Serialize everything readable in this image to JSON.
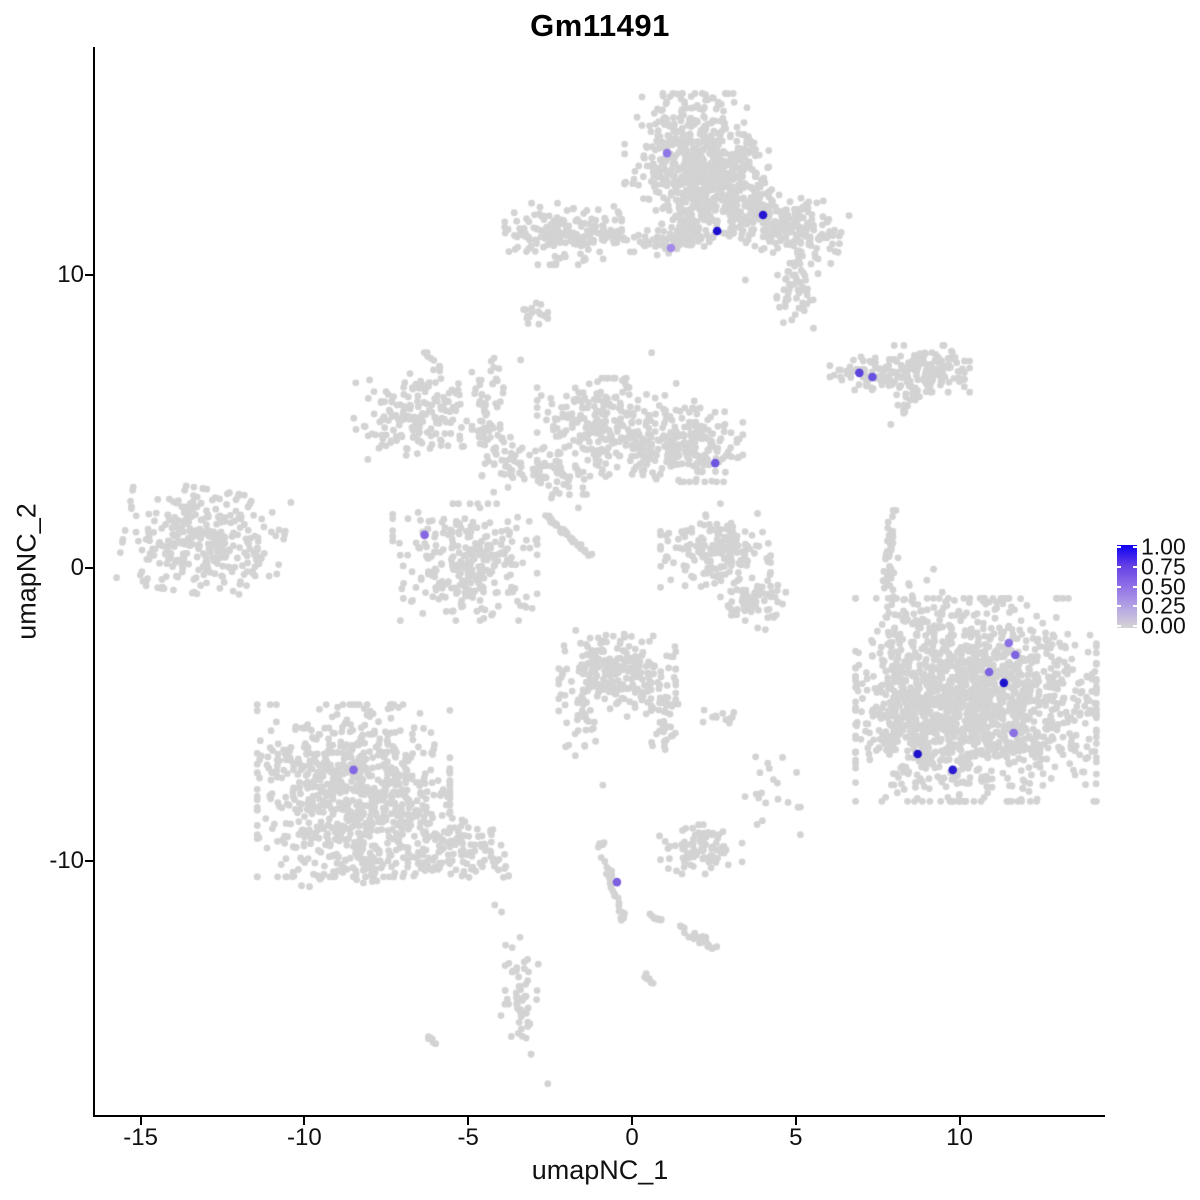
{
  "title": "Gm11491",
  "axes": {
    "x": {
      "label": "umapNC_1",
      "ticks": [
        -15,
        -10,
        -5,
        0,
        5,
        10
      ]
    },
    "y": {
      "label": "umapNC_2",
      "ticks": [
        10,
        0,
        -10
      ]
    }
  },
  "legend": {
    "tick_labels": [
      "1.00",
      "0.75",
      "0.50",
      "0.25",
      "0.00"
    ],
    "tick_values": [
      1.0,
      0.75,
      0.5,
      0.25,
      0.0
    ],
    "gradient_top_to_bottom": [
      "#0d00f5",
      "#6440e5",
      "#9071e6",
      "#b4a4e4",
      "#d6d4d6"
    ]
  },
  "colors": {
    "background_points": "#d3d3d3",
    "axis": "#000000",
    "text": "#111111",
    "max_expression": "#0d00f5"
  },
  "chart_data": {
    "type": "scatter",
    "title": "Gm11491",
    "xlabel": "umapNC_1",
    "ylabel": "umapNC_2",
    "xlim": [
      -16.4,
      14.4
    ],
    "ylim": [
      -18.7,
      17.8
    ],
    "legend_scale": {
      "min": 0.0,
      "max": 1.0,
      "low_color": "#d3d3d3",
      "high_color": "#0d00f5"
    },
    "clusters": [
      {
        "name": "top-main",
        "cx": 1.77,
        "cy": 14.2,
        "sx": 0.95,
        "sy": 0.95,
        "n": 420
      },
      {
        "name": "top-main-lower",
        "cx": 2.6,
        "cy": 13.0,
        "sx": 0.75,
        "sy": 0.75,
        "n": 260
      },
      {
        "name": "top-right-wing",
        "cx": 4.5,
        "cy": 11.8,
        "sx": 0.95,
        "sy": 0.5,
        "n": 240,
        "rot": -15
      },
      {
        "name": "top-wing-tail",
        "cx": 5.05,
        "cy": 9.9,
        "sx": 0.3,
        "sy": 0.85,
        "n": 70
      },
      {
        "name": "top-stem",
        "cx": 1.75,
        "cy": 11.9,
        "sx": 0.4,
        "sy": 0.55,
        "n": 90
      },
      {
        "name": "top-band",
        "cx": 1.1,
        "cy": 11.1,
        "sx": 0.6,
        "sy": 0.2,
        "n": 50
      },
      {
        "name": "topleft-small",
        "cx": -2.1,
        "cy": 11.4,
        "sx": 0.85,
        "sy": 0.5,
        "n": 170
      },
      {
        "name": "topleft-tail",
        "cx": -0.5,
        "cy": 11.3,
        "sx": 0.45,
        "sy": 0.12,
        "n": 25
      },
      {
        "name": "comma-small",
        "cx": -2.9,
        "cy": 8.7,
        "sx": 0.28,
        "sy": 0.18,
        "n": 18
      },
      {
        "name": "right-elong-left",
        "cx": 7.3,
        "cy": 6.6,
        "sx": 0.6,
        "sy": 0.3,
        "n": 90
      },
      {
        "name": "right-elong-right",
        "cx": 9.15,
        "cy": 6.8,
        "sx": 0.55,
        "sy": 0.38,
        "n": 120
      },
      {
        "name": "right-elong-sub",
        "cx": 8.35,
        "cy": 5.7,
        "sx": 0.3,
        "sy": 0.2,
        "n": 16
      },
      {
        "name": "midleft-mini",
        "cx": -6.5,
        "cy": 5.3,
        "sx": 0.95,
        "sy": 0.65,
        "n": 190,
        "rot": 10
      },
      {
        "name": "midleft-chain",
        "cx": -4.3,
        "cy": 5.0,
        "sx": 0.28,
        "sy": 1.15,
        "n": 60
      },
      {
        "name": "mid-blob",
        "cx": -0.9,
        "cy": 4.8,
        "sx": 0.95,
        "sy": 0.8,
        "n": 260
      },
      {
        "name": "mid-connector",
        "cx": -3.0,
        "cy": 3.3,
        "sx": 0.85,
        "sy": 0.4,
        "n": 80,
        "rot": -20
      },
      {
        "name": "center-blob",
        "cx": 1.6,
        "cy": 4.2,
        "sx": 0.85,
        "sy": 0.6,
        "n": 230
      },
      {
        "name": "far-left",
        "cx": -13.1,
        "cy": 0.9,
        "sx": 1.15,
        "sy": 0.85,
        "n": 330,
        "rot": -10
      },
      {
        "name": "left-center",
        "cx": -5.1,
        "cy": 0.2,
        "sx": 1.05,
        "sy": 0.95,
        "n": 280
      },
      {
        "name": "center-low1",
        "cx": 2.55,
        "cy": 0.6,
        "sx": 0.8,
        "sy": 0.6,
        "n": 170
      },
      {
        "name": "center-low2",
        "cx": 3.75,
        "cy": -1.1,
        "sx": 0.5,
        "sy": 0.45,
        "n": 70
      },
      {
        "name": "right-sliver",
        "cx": 7.9,
        "cy": -0.45,
        "sx": 0.14,
        "sy": 1.15,
        "n": 55
      },
      {
        "name": "right-big",
        "cx": 10.5,
        "cy": -4.5,
        "sx": 1.75,
        "sy": 1.65,
        "n": 1500
      },
      {
        "name": "right-big-arm",
        "cx": 8.4,
        "cy": -5.2,
        "sx": 0.65,
        "sy": 1.05,
        "n": 130
      },
      {
        "name": "right-big-top-sparse",
        "cx": 8.8,
        "cy": -1.3,
        "sx": 0.5,
        "sy": 0.6,
        "n": 30
      },
      {
        "name": "bottom-center",
        "cx": -0.45,
        "cy": -3.6,
        "sx": 0.85,
        "sy": 0.7,
        "n": 260
      },
      {
        "name": "bottom-center-tail",
        "cx": 0.95,
        "cy": -5.4,
        "sx": 0.22,
        "sy": 0.55,
        "n": 35
      },
      {
        "name": "bottom-center-left",
        "cx": -1.5,
        "cy": -5.6,
        "sx": 0.25,
        "sy": 0.6,
        "n": 25
      },
      {
        "name": "small-dash-pair",
        "cx": 2.7,
        "cy": -5.1,
        "sx": 0.3,
        "sy": 0.12,
        "n": 12
      },
      {
        "name": "bottom-left-big",
        "cx": -8.5,
        "cy": -7.6,
        "sx": 1.4,
        "sy": 1.4,
        "n": 800
      },
      {
        "name": "bottom-left-tail",
        "cx": -5.5,
        "cy": -9.5,
        "sx": 0.95,
        "sy": 0.5,
        "n": 130,
        "rot": -25
      },
      {
        "name": "bottom-left-under",
        "cx": -8.6,
        "cy": -10.1,
        "sx": 1.2,
        "sy": 0.4,
        "n": 70
      },
      {
        "name": "bottom-small-blob",
        "cx": 2.1,
        "cy": -9.6,
        "sx": 0.6,
        "sy": 0.4,
        "n": 80
      },
      {
        "name": "bottom-vert",
        "cx": -3.45,
        "cy": -14.6,
        "sx": 0.28,
        "sy": 0.95,
        "n": 55
      },
      {
        "name": "bottom-right-sparse",
        "cx": 4.3,
        "cy": -7.6,
        "sx": 0.45,
        "sy": 0.55,
        "n": 18
      }
    ],
    "segments": [
      {
        "name": "mini-dash",
        "x1": -6.4,
        "y1": 7.4,
        "x2": -5.9,
        "y2": 6.85,
        "n": 8,
        "jitter": 0.08
      },
      {
        "name": "diag-streak",
        "x1": -2.6,
        "y1": 1.75,
        "x2": -1.2,
        "y2": 0.35,
        "n": 45,
        "jitter": 0.06
      },
      {
        "name": "bottom-chain",
        "x1": -0.95,
        "y1": -9.45,
        "x2": -0.2,
        "y2": -12.2,
        "n": 30,
        "jitter": 0.1
      },
      {
        "name": "bottom-diag",
        "x1": 1.55,
        "y1": -12.3,
        "x2": 2.6,
        "y2": -13.0,
        "n": 25,
        "jitter": 0.12
      },
      {
        "name": "chain-dots",
        "x1": 0.45,
        "y1": -11.8,
        "x2": 0.95,
        "y2": -12.05,
        "n": 8,
        "jitter": 0.05
      },
      {
        "name": "small-dash",
        "x1": 0.35,
        "y1": -13.8,
        "x2": 0.65,
        "y2": -14.25,
        "n": 7,
        "jitter": 0.05
      },
      {
        "name": "small-dash-2",
        "x1": -6.2,
        "y1": -16.0,
        "x2": -5.9,
        "y2": -16.35,
        "n": 6,
        "jitter": 0.05
      }
    ],
    "outliers": [
      [
        7.9,
        4.9
      ],
      [
        4.07,
        -2.1
      ],
      [
        2.17,
        -5.26
      ],
      [
        -0.89,
        -7.41
      ],
      [
        -2.57,
        -17.6
      ],
      [
        -4.19,
        -11.5
      ],
      [
        -3.98,
        -11.74
      ],
      [
        5.14,
        -9.1
      ],
      [
        3.45,
        -7.8
      ],
      [
        3.46,
        9.83
      ],
      [
        0.6,
        7.35
      ],
      [
        1.35,
        6.3
      ],
      [
        1.9,
        5.7
      ],
      [
        -3.4,
        7.1
      ],
      [
        6.9,
        -4.2
      ],
      [
        2.7,
        2.2
      ]
    ],
    "highlighted_cells": [
      {
        "x": 1.07,
        "y": 14.16,
        "value": 0.4,
        "color": "#8f78e6"
      },
      {
        "x": 4.0,
        "y": 12.05,
        "value": 0.85,
        "color": "#2616d2"
      },
      {
        "x": 2.6,
        "y": 11.5,
        "value": 0.95,
        "color": "#1d0fd0"
      },
      {
        "x": 1.19,
        "y": 10.92,
        "value": 0.35,
        "color": "#a18ae8"
      },
      {
        "x": 6.94,
        "y": 6.66,
        "value": 0.6,
        "color": "#5b43dc"
      },
      {
        "x": 7.34,
        "y": 6.52,
        "value": 0.55,
        "color": "#6a50e0"
      },
      {
        "x": 2.54,
        "y": 3.58,
        "value": 0.55,
        "color": "#6e55e0"
      },
      {
        "x": -6.33,
        "y": 1.13,
        "value": 0.5,
        "color": "#8566e3"
      },
      {
        "x": 11.5,
        "y": -2.56,
        "value": 0.45,
        "color": "#8a70e3"
      },
      {
        "x": 11.7,
        "y": -2.97,
        "value": 0.5,
        "color": "#7d63e0"
      },
      {
        "x": 10.9,
        "y": -3.55,
        "value": 0.5,
        "color": "#7d63e0"
      },
      {
        "x": 11.35,
        "y": -3.92,
        "value": 0.95,
        "color": "#1d12cc"
      },
      {
        "x": 11.65,
        "y": -5.63,
        "value": 0.45,
        "color": "#8a70e3"
      },
      {
        "x": 8.72,
        "y": -6.35,
        "value": 1.0,
        "color": "#1d12cc"
      },
      {
        "x": 9.79,
        "y": -6.89,
        "value": 0.85,
        "color": "#2a1bd1"
      },
      {
        "x": -8.5,
        "y": -6.89,
        "value": 0.5,
        "color": "#8468e3"
      },
      {
        "x": -0.46,
        "y": -10.72,
        "value": 0.5,
        "color": "#7c60e0"
      }
    ]
  }
}
